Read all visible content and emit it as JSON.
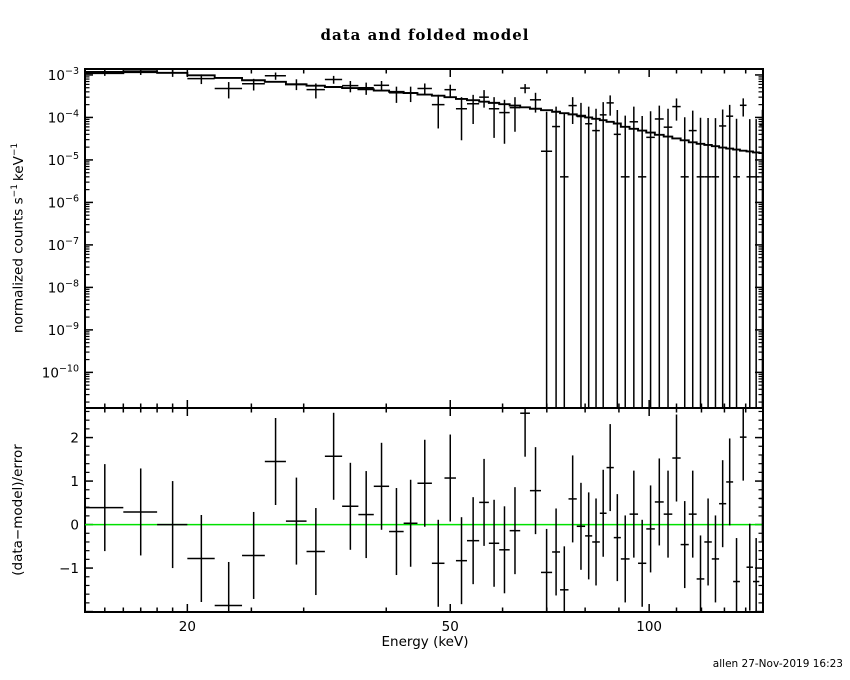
{
  "window": {
    "title": "data and folded model",
    "timestamp": "allen 27-Nov-2019 16:23"
  },
  "chart_data": {
    "type": "scatter",
    "title": "data and folded model",
    "xlabel": "Energy (keV)",
    "xscale": "log",
    "xlim": [
      14,
      148.7
    ],
    "xticks_major": [
      20,
      50,
      100
    ],
    "xtick_labels": [
      "20",
      "50",
      "100"
    ],
    "xticks_minor": [
      15,
      16,
      17,
      18,
      19,
      25,
      30,
      40,
      60,
      70,
      80,
      90,
      110,
      120,
      130,
      140
    ],
    "panels": [
      {
        "name": "spectrum",
        "ylabel": "normalized counts s−1 keV−1",
        "ylabel_parts": {
          "p1": "normalized counts s",
          "sup1": "−1",
          "p2": "keV",
          "sup2": "−1"
        },
        "yscale": "log",
        "ylim": [
          1.45e-11,
          0.00138
        ],
        "ytick_exponents": [
          -3,
          -4,
          -5,
          -6,
          -7,
          -8,
          -9,
          -10
        ],
        "series": [
          {
            "name": "data"
          },
          {
            "name": "folded model"
          }
        ]
      },
      {
        "name": "residuals",
        "ylabel": "(data−model)/error",
        "ylim": [
          -2.01,
          2.68
        ],
        "yticks_major": [
          -2,
          -1,
          0,
          1,
          2
        ],
        "ytick_labels": {
          "-1": "−1",
          "0": "0",
          "1": "1",
          "2": "2"
        },
        "ytick_minor_step": 0.2,
        "zero_line_color": "#00e000",
        "residual_error": 1
      }
    ],
    "bins_format": [
      "e_lo_keV",
      "e_hi_keV",
      "value",
      "err_top",
      "err_bottom_0_means_to_axis_floor",
      "model",
      "residual_sigma"
    ],
    "bins": [
      [
        14.0,
        16.0,
        0.00119,
        0.00143,
        0.00095,
        0.0011,
        0.39
      ],
      [
        16.0,
        18.0,
        0.00123,
        0.00145,
        0.001,
        0.00116,
        0.29
      ],
      [
        18.0,
        20.0,
        0.00112,
        0.00134,
        0.0009,
        0.00112,
        0.0
      ],
      [
        20.0,
        22.0,
        0.00082,
        0.00103,
        0.00061,
        0.00098,
        -0.78
      ],
      [
        22.0,
        24.2,
        0.00048,
        0.00068,
        0.00028,
        0.00085,
        -1.86
      ],
      [
        24.2,
        26.2,
        0.00062,
        0.00081,
        0.00043,
        0.00075,
        -0.71
      ],
      [
        26.2,
        28.2,
        0.00096,
        0.00114,
        0.00077,
        0.00069,
        1.45
      ],
      [
        28.2,
        30.3,
        0.00061,
        0.00079,
        0.00044,
        0.0006,
        0.08
      ],
      [
        30.3,
        32.3,
        0.00045,
        0.00063,
        0.00028,
        0.00056,
        -0.62
      ],
      [
        32.3,
        34.3,
        0.00078,
        0.00095,
        0.00062,
        0.00052,
        1.57
      ],
      [
        34.3,
        36.3,
        0.00056,
        0.00072,
        0.00039,
        0.00049,
        0.42
      ],
      [
        36.3,
        38.3,
        0.0005,
        0.00066,
        0.00034,
        0.00046,
        0.23
      ],
      [
        38.3,
        40.4,
        0.00057,
        0.00072,
        0.00041,
        0.00043,
        0.88
      ],
      [
        40.4,
        42.5,
        0.00038,
        0.00053,
        0.00022,
        0.0004,
        -0.16
      ],
      [
        42.5,
        44.6,
        0.00038,
        0.00053,
        0.00023,
        0.000375,
        0.03
      ],
      [
        44.6,
        46.9,
        0.00048,
        0.00063,
        0.00034,
        0.000345,
        0.95
      ],
      [
        46.9,
        49.0,
        0.0002,
        0.00034,
        5.5e-05,
        0.000325,
        -0.89
      ],
      [
        49.0,
        51.0,
        0.00045,
        0.00059,
        0.00031,
        0.0003,
        1.07
      ],
      [
        51.0,
        53.0,
        0.00016,
        0.0003,
        2.9e-05,
        0.000273,
        -0.83
      ],
      [
        53.0,
        55.3,
        0.00021,
        0.00034,
        7e-05,
        0.000255,
        -0.37
      ],
      [
        55.3,
        57.2,
        0.0003,
        0.00044,
        0.00017,
        0.000235,
        0.51
      ],
      [
        57.2,
        59.3,
        0.00016,
        0.0003,
        3.3e-05,
        0.00022,
        -0.43
      ],
      [
        59.3,
        61.5,
        0.00013,
        0.00026,
        2.4e-05,
        0.000205,
        -0.58
      ],
      [
        61.5,
        63.8,
        0.00017,
        0.0003,
        4.6e-05,
        0.00019,
        -0.14
      ],
      [
        63.8,
        66.0,
        0.00049,
        0.00061,
        0.00037,
        0.000173,
        2.56
      ],
      [
        66.0,
        68.6,
        0.00026,
        0.00038,
        0.00013,
        0.00016,
        0.78
      ],
      [
        68.6,
        71.3,
        1.6e-05,
        0.000136,
        0,
        0.000148,
        -1.1
      ],
      [
        71.3,
        73.3,
        6.1e-05,
        0.00018,
        0,
        0.000136,
        -0.63
      ],
      [
        73.3,
        75.5,
        4e-06,
        0.000121,
        0,
        0.000126,
        -1.5
      ],
      [
        75.5,
        77.7,
        0.00019,
        0.0003,
        7e-05,
        0.000118,
        0.59
      ],
      [
        77.7,
        80.0,
        0.000105,
        0.00022,
        0,
        0.00011,
        -0.04
      ],
      [
        80.0,
        82.0,
        7.1e-05,
        0.00018,
        0,
        0.0001,
        -0.26
      ],
      [
        82.0,
        84.2,
        4.9e-05,
        0.00016,
        0,
        9.3e-05,
        -0.4
      ],
      [
        84.2,
        86.2,
        0.000115,
        0.00023,
        0,
        8.6e-05,
        0.26
      ],
      [
        86.2,
        88.4,
        0.00022,
        0.00033,
        0.00011,
        7.9e-05,
        1.31
      ],
      [
        88.4,
        90.6,
        4e-05,
        0.00015,
        0,
        7.2e-05,
        -0.3
      ],
      [
        90.6,
        93.4,
        4e-06,
        0.00011,
        0,
        6e-05,
        -0.79
      ],
      [
        93.4,
        96.2,
        7.9e-05,
        0.00018,
        0,
        5.4e-05,
        0.24
      ],
      [
        96.2,
        99.0,
        4e-06,
        0.000108,
        0,
        4.9e-05,
        -0.89
      ],
      [
        99.0,
        102.0,
        3.4e-05,
        0.00014,
        0,
        4.4e-05,
        -0.1
      ],
      [
        102.0,
        105.2,
        9.2e-05,
        0.00019,
        0,
        3.9e-05,
        0.52
      ],
      [
        105.2,
        108.4,
        5.9e-05,
        0.00016,
        0,
        3.55e-05,
        0.24
      ],
      [
        108.4,
        111.6,
        0.00018,
        0.00028,
        8.4e-05,
        3.2e-05,
        1.53
      ],
      [
        111.6,
        114.8,
        4e-06,
        0.000101,
        0,
        2.9e-05,
        -0.46
      ],
      [
        114.8,
        118.0,
        4.9e-05,
        0.000145,
        0,
        2.6e-05,
        0.24
      ],
      [
        118.0,
        121.2,
        4e-06,
        9.85e-05,
        0,
        2.4e-05,
        -1.25
      ],
      [
        121.2,
        124.4,
        4e-06,
        9.7e-05,
        0,
        2.25e-05,
        -0.4
      ],
      [
        124.4,
        127.6,
        4e-06,
        9.6e-05,
        0,
        2.1e-05,
        -0.79
      ],
      [
        127.6,
        130.8,
        6.3e-05,
        0.000154,
        0,
        1.95e-05,
        0.48
      ],
      [
        130.8,
        134.0,
        0.000107,
        0.000197,
        0,
        1.85e-05,
        0.98
      ],
      [
        134.0,
        137.2,
        4e-06,
        9.3e-05,
        0,
        1.75e-05,
        -1.31
      ],
      [
        137.2,
        140.4,
        0.000193,
        0.000281,
        0.000105,
        1.65e-05,
        2.01
      ],
      [
        140.4,
        143.6,
        4e-06,
        9.15e-05,
        0,
        1.58e-05,
        -0.98
      ],
      [
        143.6,
        146.8,
        4e-06,
        9.1e-05,
        0,
        1.5e-05,
        -1.31
      ],
      [
        146.8,
        150.0,
        6.6e-05,
        0.000152,
        0,
        1.45e-05,
        0.6
      ]
    ]
  }
}
